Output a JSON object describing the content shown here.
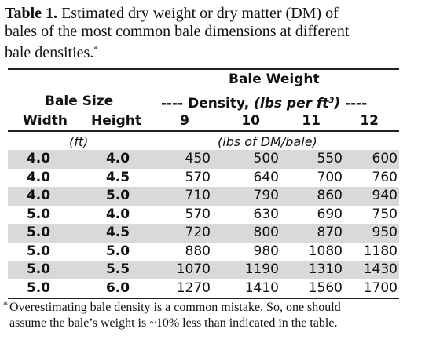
{
  "caption": {
    "label": "Table 1.",
    "text_line1": "Estimated dry weight or dry matter (DM) of",
    "text_line2": "bales of the most common bale dimensions at different",
    "text_line3": "bale densities.",
    "marker": "*"
  },
  "header": {
    "bale_weight": "Bale Weight",
    "bale_size": "Bale Size",
    "density_prefix": "---- Density, ",
    "density_unit": "(lbs per ft",
    "density_exp": "3",
    "density_close": ")",
    "density_suffix": " ----",
    "width": "Width",
    "height": "Height",
    "d9": "9",
    "d10": "10",
    "d11": "11",
    "d12": "12",
    "size_unit": "(ft)",
    "weight_unit": "(lbs of DM/bale)"
  },
  "rows": [
    {
      "width": "4.0",
      "height": "4.0",
      "d9": "450",
      "d10": "500",
      "d11": "550",
      "d12": "600"
    },
    {
      "width": "4.0",
      "height": "4.5",
      "d9": "570",
      "d10": "640",
      "d11": "700",
      "d12": "760"
    },
    {
      "width": "4.0",
      "height": "5.0",
      "d9": "710",
      "d10": "790",
      "d11": "860",
      "d12": "940"
    },
    {
      "width": "5.0",
      "height": "4.0",
      "d9": "570",
      "d10": "630",
      "d11": "690",
      "d12": "750"
    },
    {
      "width": "5.0",
      "height": "4.5",
      "d9": "720",
      "d10": "800",
      "d11": "870",
      "d12": "950"
    },
    {
      "width": "5.0",
      "height": "5.0",
      "d9": "880",
      "d10": "980",
      "d11": "1080",
      "d12": "1180"
    },
    {
      "width": "5.0",
      "height": "5.5",
      "d9": "1070",
      "d10": "1190",
      "d11": "1310",
      "d12": "1430"
    },
    {
      "width": "5.0",
      "height": "6.0",
      "d9": "1270",
      "d10": "1410",
      "d11": "1560",
      "d12": "1700"
    }
  ],
  "footnote": {
    "marker": "*",
    "line1": "Overestimating bale density is a common mistake. So, one should",
    "line2": "assume the bale’s weight is ~10% less than indicated in the table."
  }
}
